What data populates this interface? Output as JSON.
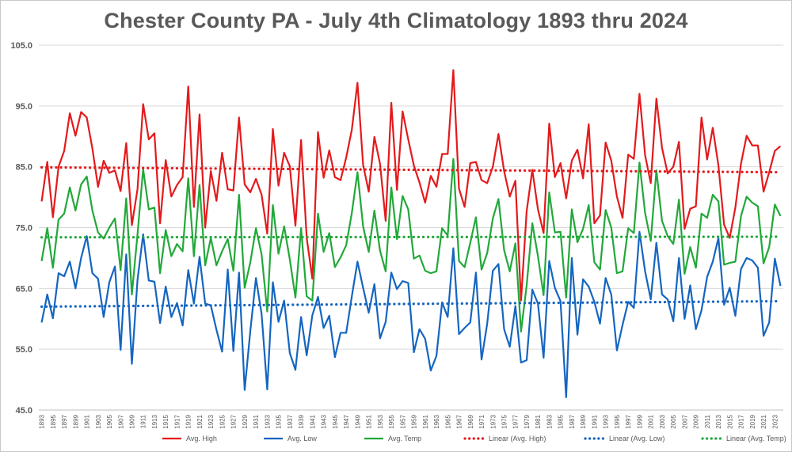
{
  "chart_data": {
    "type": "line",
    "title": "Chester County PA - July 4th Climatology 1893 thru 2024",
    "xlabel": "",
    "ylabel": "",
    "x_start": 1893,
    "x_end": 2024,
    "x_tick_step": 2,
    "ylim": [
      45,
      105
    ],
    "y_ticks": [
      "45.0",
      "55.0",
      "65.0",
      "75.0",
      "85.0",
      "95.0",
      "105.0"
    ],
    "grid": "horizontal",
    "legend_position": "bottom",
    "series": [
      {
        "name": "Avg. High",
        "color": "#e31a1c",
        "style": "solid",
        "values": [
          79.3,
          85.8,
          76.7,
          85.0,
          87.6,
          93.8,
          90.1,
          94.0,
          93.1,
          88.0,
          81.7,
          86.0,
          84.0,
          84.4,
          81.0,
          88.9,
          75.4,
          81.3,
          95.3,
          89.5,
          90.5,
          75.7,
          86.1,
          80.1,
          82.0,
          83.3,
          98.2,
          78.4,
          93.6,
          75.0,
          84.3,
          79.4,
          87.3,
          81.3,
          81.1,
          93.1,
          82.1,
          80.8,
          83.0,
          80.4,
          74.0,
          91.2,
          81.9,
          87.3,
          85.1,
          75.3,
          89.4,
          73.3,
          66.6,
          90.7,
          83.2,
          87.7,
          83.3,
          82.8,
          86.5,
          91.1,
          98.8,
          85.3,
          80.9,
          89.9,
          85.5,
          76.1,
          95.5,
          81.2,
          94.1,
          89.5,
          85.2,
          82.4,
          79.1,
          83.5,
          81.7,
          87.1,
          87.1,
          100.9,
          81.4,
          78.4,
          85.6,
          85.8,
          82.8,
          82.3,
          85.0,
          90.4,
          84.3,
          80.1,
          82.7,
          63.0,
          77.7,
          84.5,
          78.0,
          74.1,
          92.1,
          83.3,
          85.6,
          79.8,
          86.0,
          87.8,
          83.1,
          92.0,
          75.7,
          77.0,
          89.0,
          86.0,
          80.1,
          76.6,
          87.0,
          86.3,
          97.0,
          86.9,
          82.3,
          96.2,
          88.1,
          83.9,
          85.0,
          89.1,
          74.8,
          78.1,
          78.5,
          93.1,
          86.2,
          91.4,
          85.2,
          75.5,
          73.3,
          78.3,
          85.5,
          90.1,
          88.5,
          88.5,
          80.9,
          84.1,
          87.6,
          88.4
        ]
      },
      {
        "name": "Avg. Low",
        "color": "#1565c0",
        "style": "solid",
        "values": [
          59.4,
          64.0,
          60.1,
          67.5,
          67.0,
          69.4,
          65.0,
          70.0,
          73.6,
          67.5,
          66.6,
          60.3,
          66.0,
          68.6,
          54.9,
          70.6,
          52.6,
          66.4,
          73.9,
          66.3,
          66.1,
          59.3,
          65.3,
          60.3,
          62.6,
          58.9,
          68.0,
          62.5,
          70.2,
          62.5,
          62.2,
          58.2,
          54.6,
          68.1,
          54.7,
          67.6,
          48.3,
          58.0,
          66.7,
          60.8,
          48.4,
          66.0,
          59.5,
          63.0,
          54.4,
          51.6,
          60.3,
          54.0,
          60.6,
          63.6,
          58.5,
          60.5,
          53.7,
          57.7,
          57.7,
          63.7,
          69.4,
          65.1,
          61.0,
          65.7,
          56.8,
          59.5,
          67.6,
          64.9,
          66.2,
          65.9,
          54.5,
          58.3,
          56.7,
          51.5,
          53.9,
          62.7,
          60.3,
          71.6,
          57.5,
          58.5,
          59.4,
          67.6,
          53.3,
          59.2,
          67.9,
          69.0,
          58.3,
          55.4,
          62.1,
          52.8,
          53.2,
          64.8,
          62.5,
          53.6,
          69.5,
          65.1,
          62.9,
          47.1,
          70.0,
          57.4,
          66.5,
          65.3,
          62.8,
          59.2,
          66.7,
          64.0,
          54.8,
          59.0,
          62.8,
          61.8,
          74.3,
          67.8,
          63.2,
          72.5,
          64.0,
          63.2,
          59.6,
          70.0,
          60.0,
          65.5,
          58.3,
          61.4,
          66.9,
          69.4,
          73.3,
          62.3,
          65.1,
          60.5,
          68.2,
          70.0,
          69.6,
          68.4,
          57.2,
          59.4,
          69.9,
          65.4
        ]
      },
      {
        "name": "Avg. Temp",
        "color": "#22a83a",
        "style": "solid",
        "values": [
          69.5,
          74.9,
          68.4,
          76.3,
          77.3,
          81.6,
          77.8,
          82.1,
          83.4,
          77.8,
          74.2,
          73.2,
          75.0,
          76.5,
          68.0,
          79.8,
          64.0,
          73.9,
          84.6,
          78.0,
          78.3,
          67.5,
          74.6,
          70.3,
          72.3,
          71.1,
          83.1,
          70.3,
          82.0,
          68.8,
          73.3,
          68.8,
          71.1,
          73.1,
          67.9,
          80.4,
          65.1,
          69.3,
          74.9,
          70.6,
          61.2,
          78.7,
          70.7,
          75.2,
          69.8,
          63.5,
          74.9,
          63.7,
          63.0,
          77.3,
          71.0,
          74.1,
          68.5,
          70.1,
          72.1,
          77.4,
          84.1,
          75.2,
          71.0,
          77.8,
          71.2,
          67.8,
          81.6,
          73.1,
          80.2,
          78.0,
          69.9,
          70.4,
          67.9,
          67.5,
          67.8,
          74.9,
          73.7,
          86.3,
          69.5,
          68.5,
          72.5,
          76.7,
          68.1,
          70.8,
          76.5,
          79.7,
          71.3,
          67.8,
          72.4,
          57.9,
          65.5,
          75.7,
          70.3,
          63.9,
          80.8,
          74.2,
          74.3,
          63.5,
          78.0,
          72.6,
          74.8,
          78.7,
          69.3,
          68.1,
          77.9,
          75.0,
          67.5,
          67.8,
          74.9,
          74.1,
          85.7,
          77.4,
          72.8,
          84.4,
          76.1,
          73.6,
          72.3,
          79.6,
          67.4,
          71.8,
          68.4,
          77.3,
          76.6,
          80.4,
          79.3,
          68.9,
          69.2,
          69.4,
          76.9,
          80.1,
          79.1,
          78.5,
          69.1,
          71.8,
          78.8,
          76.9
        ]
      },
      {
        "name": "Linear (Avg. High)",
        "color": "#e31a1c",
        "style": "dotted",
        "values": [
          84.9,
          84.1
        ]
      },
      {
        "name": "Linear (Avg. Low)",
        "color": "#1565c0",
        "style": "dotted",
        "values": [
          62.0,
          62.9
        ]
      },
      {
        "name": "Linear (Avg. Temp)",
        "color": "#22a83a",
        "style": "dotted",
        "values": [
          73.4,
          73.5
        ]
      }
    ]
  }
}
